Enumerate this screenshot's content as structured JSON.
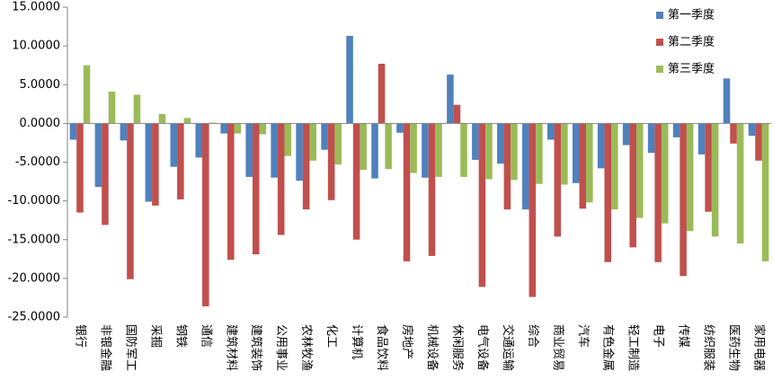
{
  "chart_data": {
    "type": "bar",
    "categories": [
      "银行",
      "非银金融",
      "国防军工",
      "采掘",
      "钢铁",
      "通信",
      "建筑材料",
      "建筑装饰",
      "公用事业",
      "农林牧渔",
      "化工",
      "计算机",
      "食品饮料",
      "房地产",
      "机械设备",
      "休闲服务",
      "电气设备",
      "交通运输",
      "综合",
      "商业贸易",
      "汽车",
      "有色金属",
      "轻工制造",
      "电子",
      "传媒",
      "纺织服装",
      "医药生物",
      "家用电器"
    ],
    "series": [
      {
        "name": "第一季度",
        "color": "#4f81bd",
        "values": [
          -2.1,
          -8.2,
          -2.2,
          -10.1,
          -5.6,
          -4.4,
          -1.3,
          -6.9,
          -7.0,
          -7.4,
          -3.4,
          11.3,
          -7.1,
          -1.2,
          -7.0,
          6.3,
          -4.7,
          -5.2,
          -11.1,
          -2.1,
          -7.7,
          -5.8,
          -2.8,
          -3.8,
          -1.8,
          -4.0,
          5.8,
          -1.6
        ]
      },
      {
        "name": "第二季度",
        "color": "#c0504d",
        "values": [
          -11.5,
          -13.1,
          -20.1,
          -10.6,
          -9.8,
          -23.6,
          -17.6,
          -16.9,
          -14.4,
          -11.1,
          -9.9,
          -15.0,
          7.7,
          -17.8,
          -17.1,
          2.4,
          -21.1,
          -11.1,
          -22.4,
          -14.6,
          -11.0,
          -17.9,
          -16.0,
          -17.9,
          -19.7,
          -11.4,
          -2.6,
          -4.8
        ]
      },
      {
        "name": "第三季度",
        "color": "#9bbb59",
        "values": [
          7.5,
          4.1,
          3.7,
          1.2,
          0.7,
          0.1,
          -1.3,
          -1.4,
          -4.2,
          -4.8,
          -5.3,
          -6.0,
          -5.9,
          -6.4,
          -6.9,
          -6.9,
          -7.2,
          -7.3,
          -7.8,
          -7.9,
          -10.2,
          -11.1,
          -12.2,
          -12.9,
          -13.9,
          -14.6,
          -15.5,
          -17.8
        ]
      }
    ],
    "ylim": [
      -25,
      15
    ],
    "yticks": [
      {
        "value": -25,
        "label": "-25.0000"
      },
      {
        "value": -20,
        "label": "-20.0000"
      },
      {
        "value": -15,
        "label": "-15.0000"
      },
      {
        "value": -10,
        "label": "-10.0000"
      },
      {
        "value": -5,
        "label": "-5.0000"
      },
      {
        "value": 0,
        "label": "0.0000"
      },
      {
        "value": 5,
        "label": "5.0000"
      },
      {
        "value": 10,
        "label": "10.0000"
      },
      {
        "value": 15,
        "label": "15.0000"
      }
    ],
    "legend": "top-right"
  }
}
